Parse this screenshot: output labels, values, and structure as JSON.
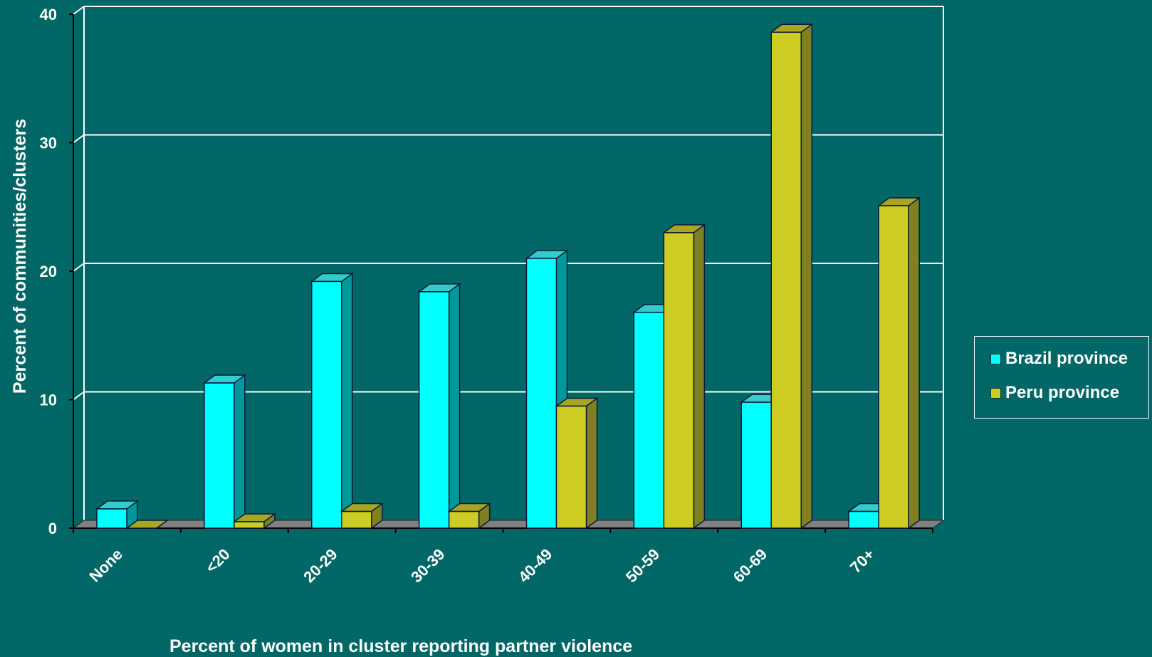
{
  "chart_data": {
    "type": "bar",
    "variant": "3d-clustered",
    "categories": [
      "None",
      "<20",
      "20-29",
      "30-39",
      "40-49",
      "50-59",
      "60-69",
      "70+"
    ],
    "series": [
      {
        "name": "Brazil province",
        "values": [
          1.5,
          11.3,
          19.2,
          18.4,
          21.0,
          16.8,
          9.8,
          1.3
        ]
      },
      {
        "name": "Peru province",
        "values": [
          0,
          0.5,
          1.3,
          1.3,
          9.5,
          23.0,
          38.6,
          25.1
        ]
      }
    ],
    "xlabel": "Percent of women in cluster reporting partner violence",
    "ylabel": "Percent of communities/clusters",
    "ylim": [
      0,
      40
    ],
    "yticks": [
      0,
      10,
      20,
      30,
      40
    ],
    "grid": true,
    "legend_position": "right",
    "colors": {
      "background": "#006666",
      "brazil": "#00FFFF",
      "brazil_side": "#009999",
      "peru": "#CCCC22",
      "peru_side": "#808022",
      "floor": "#808080",
      "grid": "#FFFFFF"
    }
  }
}
